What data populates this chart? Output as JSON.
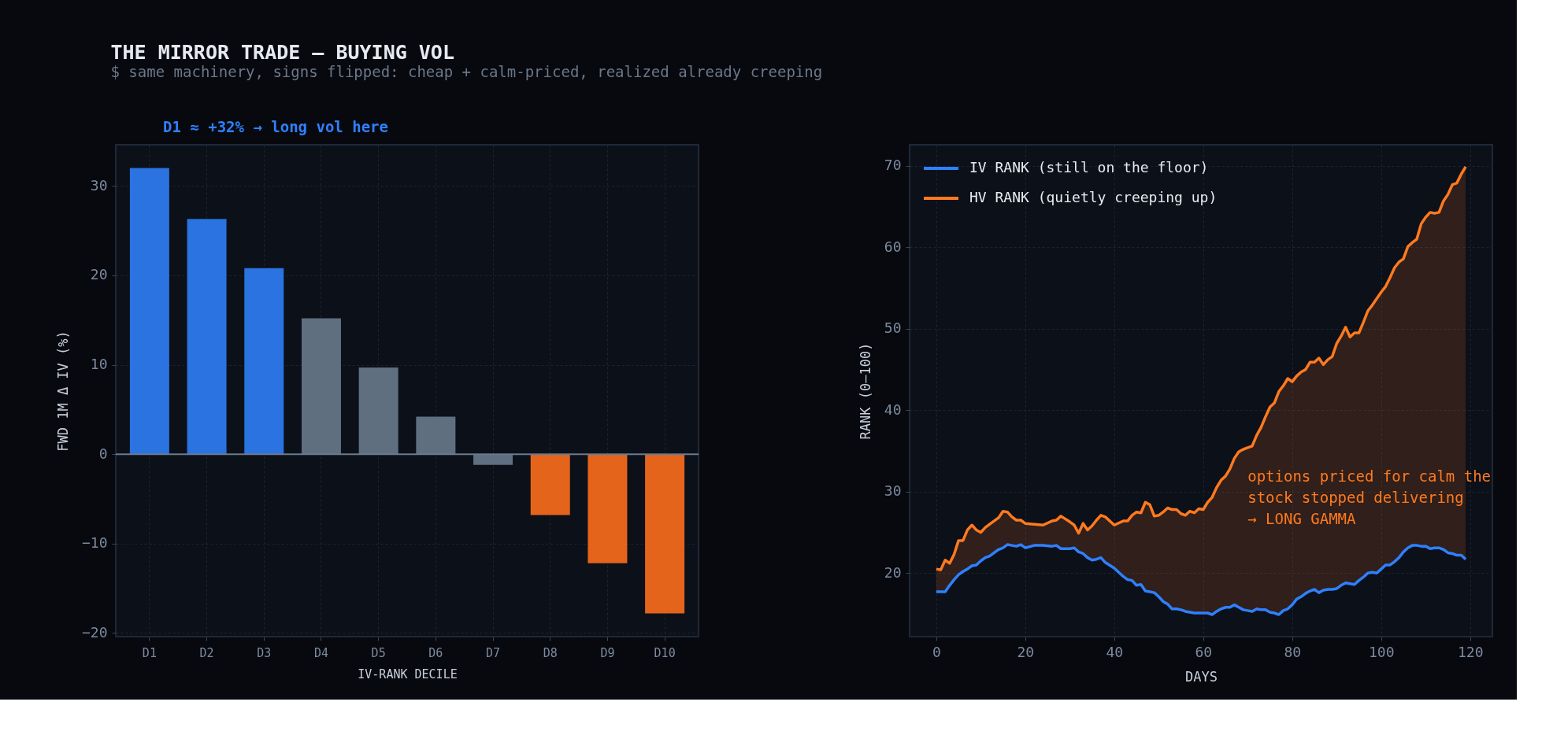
{
  "chart_data": [
    {
      "type": "bar",
      "title": "THE MIRROR TRADE — BUYING VOL",
      "subtitle": "$ same machinery, signs flipped: cheap + calm-priced, realized already creeping",
      "categories": [
        "D1",
        "D2",
        "D3",
        "D4",
        "D5",
        "D6",
        "D7",
        "D8",
        "D9",
        "D10"
      ],
      "values": [
        32.0,
        26.3,
        20.8,
        15.2,
        9.7,
        4.2,
        -1.2,
        -6.8,
        -12.2,
        -17.8
      ],
      "colors": [
        "#2a73e0",
        "#2a73e0",
        "#2a73e0",
        "#5f6f80",
        "#5f6f80",
        "#5f6f80",
        "#5f6f80",
        "#e5641c",
        "#e5641c",
        "#e5641c"
      ],
      "xlabel": "IV-RANK DECILE",
      "ylabel": "FWD 1M Δ IV (%)",
      "ylim": [
        -20.4,
        34.6
      ],
      "yticks": [
        -20,
        -10,
        0,
        10,
        20,
        30
      ],
      "grid": true,
      "ref_lines": [
        {
          "axis": "y",
          "value": 0,
          "color": "#6b7b8f"
        }
      ],
      "annotations": [
        "D1 ≈ +32% → long vol here"
      ]
    },
    {
      "type": "line",
      "xlabel": "DAYS",
      "ylabel": "RANK (0–100)",
      "xlim": [
        -6,
        125
      ],
      "xticks": [
        0,
        20,
        40,
        60,
        80,
        100,
        120
      ],
      "ylim": [
        12.2,
        72.6
      ],
      "yticks": [
        20,
        30,
        40,
        50,
        60,
        70
      ],
      "grid": true,
      "legend": "top left",
      "x": [
        0,
        1,
        2,
        3,
        4,
        5,
        6,
        7,
        8,
        9,
        10,
        11,
        12,
        14,
        15,
        16,
        17,
        18,
        19,
        20,
        22,
        24,
        26,
        27,
        28,
        30,
        31,
        32,
        33,
        34,
        35,
        36,
        37,
        38,
        40,
        42,
        43,
        44,
        45,
        46,
        47,
        48,
        49,
        50,
        51,
        52,
        53,
        54,
        55,
        56,
        57,
        58,
        59,
        60,
        61,
        62,
        63,
        64,
        65,
        66,
        67,
        68,
        69,
        70,
        71,
        72,
        73,
        74,
        75,
        76,
        77,
        78,
        79,
        80,
        81,
        82,
        83,
        84,
        85,
        86,
        87,
        88,
        89,
        90,
        91,
        92,
        93,
        94,
        95,
        96,
        97,
        98,
        99,
        100,
        101,
        102,
        103,
        104,
        105,
        106,
        107,
        108,
        109,
        110,
        111,
        112,
        113,
        114,
        115,
        116,
        117,
        118,
        119
      ],
      "series": [
        {
          "name": "IV RANK (still on the floor)",
          "color": "#2f80ff",
          "values": [
            17.7,
            17.7,
            17.7,
            18.5,
            19.2,
            19.8,
            20.2,
            20.5,
            20.9,
            21.0,
            21.5,
            21.9,
            22.1,
            22.9,
            23.1,
            23.5,
            23.4,
            23.3,
            23.5,
            23.1,
            23.4,
            23.4,
            23.3,
            23.4,
            23.0,
            23.0,
            23.1,
            22.6,
            22.4,
            21.9,
            21.6,
            21.7,
            21.9,
            21.3,
            20.6,
            19.6,
            19.2,
            19.1,
            18.5,
            18.6,
            17.8,
            17.7,
            17.6,
            17.1,
            16.5,
            16.2,
            15.6,
            15.6,
            15.5,
            15.3,
            15.2,
            15.1,
            15.1,
            15.1,
            15.1,
            14.9,
            15.3,
            15.6,
            15.8,
            15.8,
            16.1,
            15.8,
            15.5,
            15.4,
            15.3,
            15.6,
            15.5,
            15.5,
            15.2,
            15.1,
            14.9,
            15.4,
            15.6,
            16.1,
            16.8,
            17.1,
            17.5,
            17.8,
            18.0,
            17.6,
            17.9,
            18.0,
            18.0,
            18.1,
            18.5,
            18.8,
            18.7,
            18.6,
            19.1,
            19.5,
            20.0,
            20.1,
            20.0,
            20.5,
            21.0,
            21.0,
            21.4,
            21.9,
            22.6,
            23.1,
            23.4,
            23.4,
            23.3,
            23.3,
            23.0,
            23.1,
            23.1,
            22.9,
            22.5,
            22.4,
            22.2,
            22.2,
            21.7
          ]
        },
        {
          "name": "HV RANK (quietly creeping up)",
          "color": "#ff7a1f",
          "values": [
            20.5,
            20.4,
            21.6,
            21.2,
            22.3,
            24.0,
            24.0,
            25.3,
            25.9,
            25.3,
            25.0,
            25.6,
            26.0,
            26.8,
            27.6,
            27.5,
            26.9,
            26.5,
            26.5,
            26.1,
            26.0,
            25.9,
            26.4,
            26.5,
            27.0,
            26.3,
            25.9,
            24.9,
            26.1,
            25.3,
            25.8,
            26.5,
            27.1,
            26.9,
            25.9,
            26.4,
            26.4,
            27.1,
            27.5,
            27.4,
            28.7,
            28.4,
            27.0,
            27.1,
            27.5,
            28.0,
            27.8,
            27.8,
            27.3,
            27.1,
            27.6,
            27.4,
            27.9,
            27.8,
            28.7,
            29.3,
            30.5,
            31.4,
            31.9,
            32.8,
            34.1,
            34.9,
            35.2,
            35.4,
            35.6,
            36.9,
            37.9,
            39.2,
            40.4,
            40.9,
            42.3,
            43.0,
            43.9,
            43.5,
            44.2,
            44.7,
            45.0,
            45.9,
            45.9,
            46.4,
            45.6,
            46.2,
            46.6,
            48.2,
            49.1,
            50.2,
            49.0,
            49.5,
            49.5,
            50.8,
            52.2,
            52.9,
            53.7,
            54.5,
            55.2,
            56.3,
            57.5,
            58.2,
            58.6,
            60.1,
            60.6,
            61.0,
            62.9,
            63.7,
            64.3,
            64.2,
            64.3,
            65.7,
            66.5,
            67.7,
            67.9,
            69.0,
            69.9
          ],
          "lower": [
            17.7,
            17.7,
            17.7,
            18.5,
            19.2,
            19.8,
            20.2,
            20.5,
            20.9,
            21.0,
            21.5,
            21.9,
            22.1,
            22.9,
            23.1,
            23.5,
            23.4,
            23.3,
            23.5,
            23.1,
            23.4,
            23.4,
            23.3,
            23.4,
            23.0,
            23.0,
            23.1,
            22.6,
            22.4,
            21.9,
            21.6,
            21.7,
            21.9,
            21.3,
            20.6,
            19.6,
            19.2,
            19.1,
            18.5,
            18.6,
            17.8,
            17.7,
            17.6,
            17.1,
            16.5,
            16.2,
            15.6,
            15.6,
            15.5,
            15.3,
            15.2,
            15.1,
            15.1,
            15.1,
            15.1,
            14.9,
            15.3,
            15.6,
            15.8,
            15.8,
            16.1,
            15.8,
            15.5,
            15.4,
            15.3,
            15.6,
            15.5,
            15.5,
            15.2,
            15.1,
            14.9,
            15.4,
            15.6,
            16.1,
            16.8,
            17.1,
            17.5,
            17.8,
            18.0,
            17.6,
            17.9,
            18.0,
            18.0,
            18.1,
            18.5,
            18.8,
            18.7,
            18.6,
            19.1,
            19.5,
            20.0,
            20.1,
            20.0,
            20.5,
            21.0,
            21.0,
            21.4,
            21.9,
            22.6,
            23.1,
            23.4,
            23.4,
            23.3,
            23.3,
            23.0,
            23.1,
            23.1,
            22.9,
            22.5,
            22.4,
            22.2,
            22.2,
            21.7
          ],
          "upper": [
            20.5,
            20.4,
            21.6,
            21.2,
            22.3,
            24.0,
            24.0,
            25.3,
            25.9,
            25.3,
            25.0,
            25.6,
            26.0,
            26.8,
            27.6,
            27.5,
            26.9,
            26.5,
            26.5,
            26.1,
            26.0,
            25.9,
            26.4,
            26.5,
            27.0,
            26.3,
            25.9,
            24.9,
            26.1,
            25.3,
            25.8,
            26.5,
            27.1,
            26.9,
            25.9,
            26.4,
            26.4,
            27.1,
            27.5,
            27.4,
            28.7,
            28.4,
            27.0,
            27.1,
            27.5,
            28.0,
            27.8,
            27.8,
            27.3,
            27.1,
            27.6,
            27.4,
            27.9,
            27.8,
            28.7,
            29.3,
            30.5,
            31.4,
            31.9,
            32.8,
            34.1,
            34.9,
            35.2,
            35.4,
            35.6,
            36.9,
            37.9,
            39.2,
            40.4,
            40.9,
            42.3,
            43.0,
            43.9,
            43.5,
            44.2,
            44.7,
            45.0,
            45.9,
            45.9,
            46.4,
            45.6,
            46.2,
            46.6,
            48.2,
            49.1,
            50.2,
            49.0,
            49.5,
            49.5,
            50.8,
            52.2,
            52.9,
            53.7,
            54.5,
            55.2,
            56.3,
            57.5,
            58.2,
            58.6,
            60.1,
            60.6,
            61.0,
            62.9,
            63.7,
            64.3,
            64.2,
            64.3,
            65.7,
            66.5,
            67.7,
            67.9,
            69.0,
            69.9
          ]
        }
      ],
      "annotations": [
        "options priced for calm the\nstock stopped delivering\n→ LONG GAMMA"
      ]
    }
  ]
}
